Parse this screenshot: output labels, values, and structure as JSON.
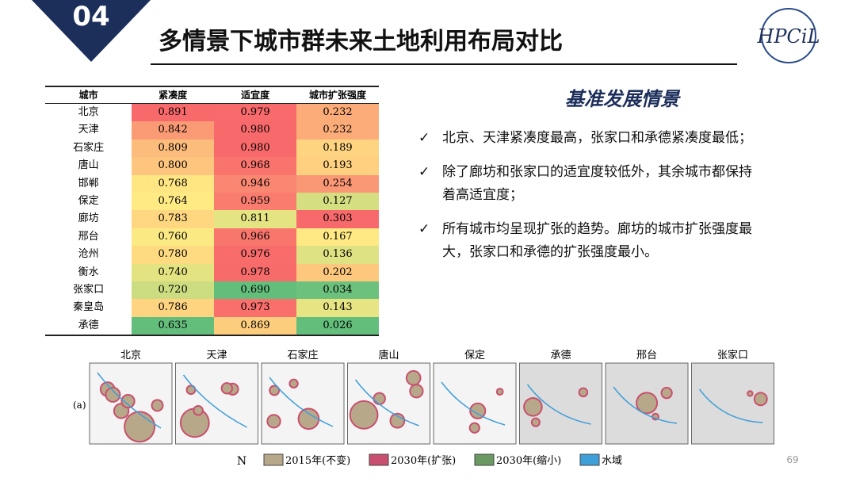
{
  "header": {
    "number": "04",
    "title": "多情景下城市群未来土地利用布局对比",
    "logo": "HPCiL"
  },
  "table": {
    "columns": [
      "城市",
      "紧凑度",
      "适宜度",
      "城市扩张强度"
    ],
    "rows": [
      [
        "北京",
        "0.891",
        "0.979",
        "0.232"
      ],
      [
        "天津",
        "0.842",
        "0.980",
        "0.232"
      ],
      [
        "石家庄",
        "0.809",
        "0.980",
        "0.189"
      ],
      [
        "唐山",
        "0.800",
        "0.968",
        "0.193"
      ],
      [
        "邯郸",
        "0.768",
        "0.946",
        "0.254"
      ],
      [
        "保定",
        "0.764",
        "0.959",
        "0.127"
      ],
      [
        "廊坊",
        "0.783",
        "0.811",
        "0.303"
      ],
      [
        "邢台",
        "0.760",
        "0.966",
        "0.167"
      ],
      [
        "沧州",
        "0.780",
        "0.976",
        "0.136"
      ],
      [
        "衡水",
        "0.740",
        "0.978",
        "0.202"
      ],
      [
        "张家口",
        "0.720",
        "0.690",
        "0.034"
      ],
      [
        "秦皇岛",
        "0.786",
        "0.973",
        "0.143"
      ],
      [
        "承德",
        "0.635",
        "0.869",
        "0.026"
      ]
    ]
  },
  "section": {
    "title": "基准发展情景",
    "bullets": [
      [
        "北京、天津紧凑度最高，张家口和承德紧凑度最低；"
      ],
      [
        "除了廊坊和张家口的适宜度较低外，其余城市都保持",
        "着高适宜度；"
      ],
      [
        "所有城市均呈现扩张的趋势。廊坊的城市扩张强度最",
        "大，张家口和承德的扩张强度最小。"
      ]
    ]
  },
  "maps": {
    "panel_label": "(a)",
    "cities": [
      "北京",
      "天津",
      "石家庄",
      "唐山",
      "保定",
      "承德",
      "邢台",
      "张家口"
    ]
  },
  "legend": {
    "north": "N",
    "items": [
      {
        "label": "2015年(不变)",
        "color": "#b8a88a"
      },
      {
        "label": "2030年(扩张)",
        "color": "#c8506e"
      },
      {
        "label": "2030年(缩小)",
        "color": "#6a9a62"
      },
      {
        "label": "水域",
        "color": "#3f9fd8"
      }
    ]
  },
  "page_number": "69"
}
